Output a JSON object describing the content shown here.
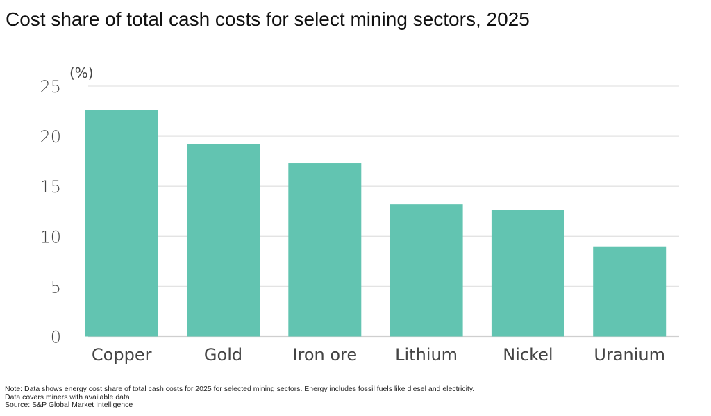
{
  "chart_data": {
    "type": "bar",
    "title": "Cost share of total cash costs for select mining sectors, 2025",
    "ylabel": "(%)",
    "xlabel": "",
    "categories": [
      "Copper",
      "Gold",
      "Iron ore",
      "Lithium",
      "Nickel",
      "Uranium"
    ],
    "values": [
      22.6,
      19.2,
      17.3,
      13.2,
      12.6,
      9.0
    ],
    "ylim": [
      0,
      25
    ],
    "yticks": [
      0,
      5,
      10,
      15,
      20,
      25
    ],
    "grid": true,
    "bar_color": "#62c4b1",
    "notes": [
      "Note: Data shows energy cost share of total cash costs for 2025 for selected mining sectors. Energy includes fossil fuels like diesel and electricity.",
      "Data covers miners with available data",
      "Source: S&P Global Market Intelligence"
    ]
  }
}
